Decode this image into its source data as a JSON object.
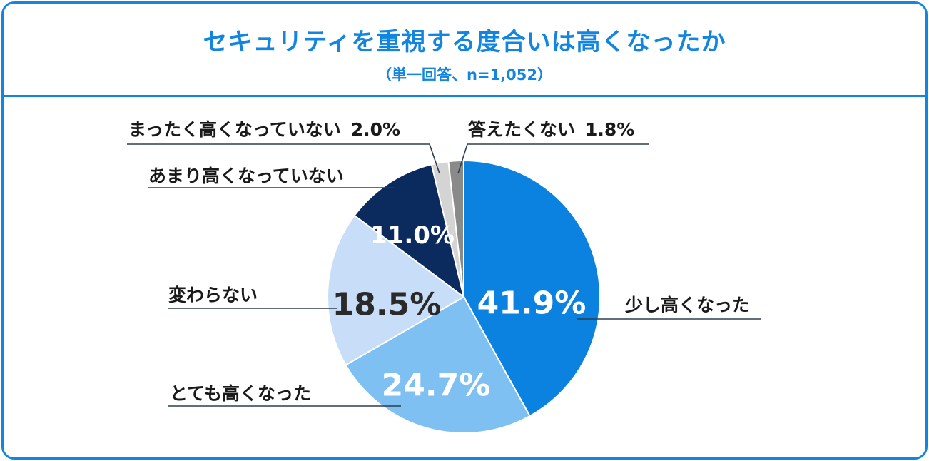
{
  "title": "セキュリティを重視する度合いは高くなったか",
  "subtitle": "（単一回答、n=1,052）",
  "colors": {
    "border": "#1185e0",
    "title": "#1185e0",
    "leader_line": "#2d3e50"
  },
  "chart_data": {
    "type": "pie",
    "title": "セキュリティを重視する度合いは高くなったか",
    "subtitle": "（単一回答、n=1,052）",
    "start_angle_deg": 0,
    "direction": "clockwise",
    "slices": [
      {
        "label": "少し高くなった",
        "value": 41.9,
        "value_label": "41.9%",
        "color": "#0c82e0",
        "value_color": "#ffffff"
      },
      {
        "label": "とても高くなった",
        "value": 24.7,
        "value_label": "24.7%",
        "color": "#7fc0f2",
        "value_color": "#ffffff"
      },
      {
        "label": "変わらない",
        "value": 18.5,
        "value_label": "18.5%",
        "color": "#c8def8",
        "value_color": "#2a2a2a"
      },
      {
        "label": "あまり高くなっていない",
        "value": 11.0,
        "value_label": "11.0%",
        "color": "#0b2a5e",
        "value_color": "#ffffff"
      },
      {
        "label": "まったく高くなっていない",
        "value": 2.0,
        "value_label": "2.0%",
        "color": "#d4d4d4",
        "value_color": "#1a1a1a"
      },
      {
        "label": "答えたくない",
        "value": 1.8,
        "value_label": "1.8%",
        "color": "#8a8a8a",
        "value_color": "#1a1a1a"
      }
    ]
  }
}
